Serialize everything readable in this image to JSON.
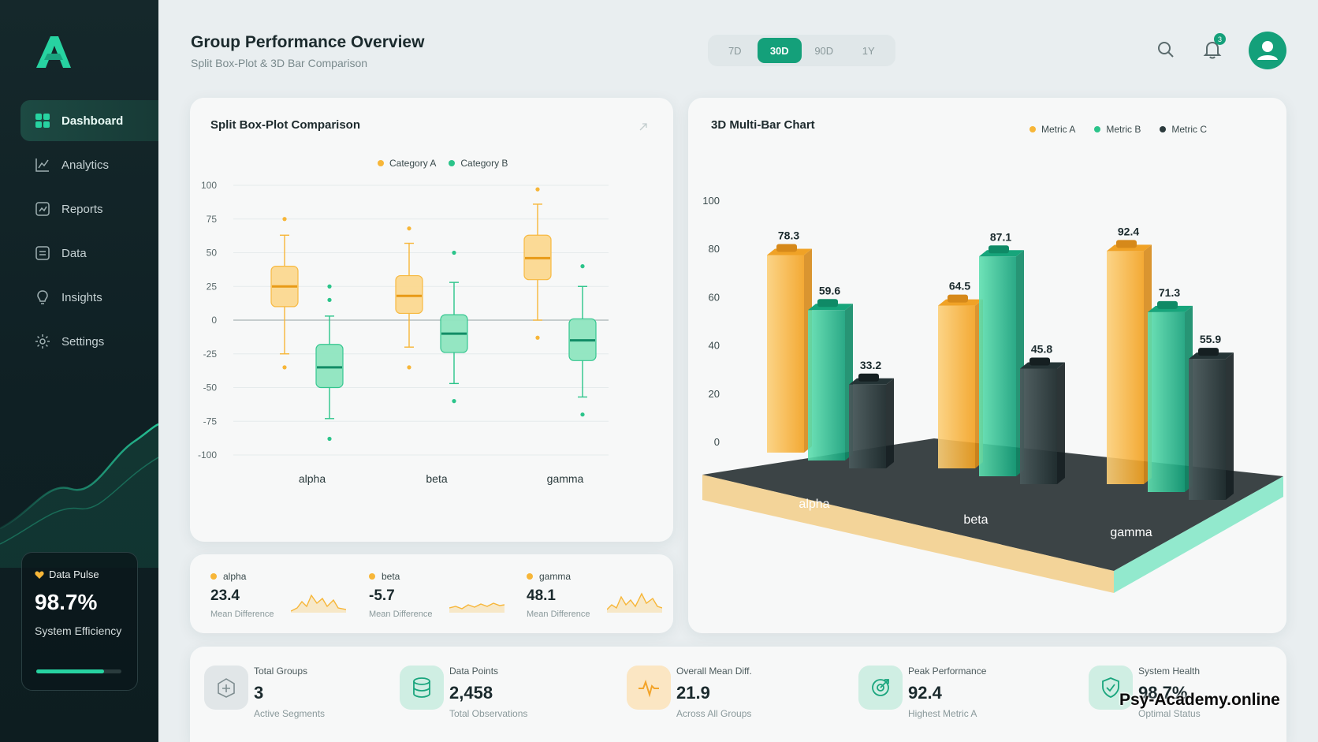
{
  "app": {
    "title": "Group Performance Overview",
    "subtitle": "Split Box-Plot & 3D Bar Comparison",
    "brand_color": "#14a07a"
  },
  "sidebar": {
    "items": [
      {
        "label": "Dashboard",
        "icon": "grid-icon",
        "active": true
      },
      {
        "label": "Analytics",
        "icon": "chart-line-icon"
      },
      {
        "label": "Reports",
        "icon": "report-icon"
      },
      {
        "label": "Data",
        "icon": "data-icon"
      },
      {
        "label": "Insights",
        "icon": "bulb-icon"
      },
      {
        "label": "Settings",
        "icon": "gear-icon"
      }
    ],
    "pulse": {
      "title": "Data Pulse",
      "value": "98.7%",
      "label": "System Efficiency",
      "progress": 0.8
    }
  },
  "header": {
    "ranges": [
      "7D",
      "30D",
      "90D",
      "1Y"
    ],
    "selected_range": "30D",
    "notification_count": "3"
  },
  "box_card": {
    "title": "Split Box-Plot Comparison",
    "legend": [
      {
        "label": "Category A",
        "color": "#f7b638"
      },
      {
        "label": "Category B",
        "color": "#2bc48a"
      }
    ]
  },
  "bar_card": {
    "title": "3D Multi-Bar Chart",
    "legend": [
      {
        "label": "Metric A",
        "color": "#f7b638"
      },
      {
        "label": "Metric B",
        "color": "#2bc48a"
      },
      {
        "label": "Metric C",
        "color": "#2c3b3d"
      }
    ]
  },
  "mini_stats": [
    {
      "name": "alpha",
      "value": "23.4",
      "label": "Mean Difference"
    },
    {
      "name": "beta",
      "value": "-5.7",
      "label": "Mean Difference"
    },
    {
      "name": "gamma",
      "value": "48.1",
      "label": "Mean Difference"
    }
  ],
  "stats": [
    {
      "name": "Total Groups",
      "value": "3",
      "label": "Active Segments",
      "icon": "groups-icon",
      "tone": "gray"
    },
    {
      "name": "Data Points",
      "value": "2,458",
      "label": "Total Observations",
      "icon": "database-icon",
      "tone": "green"
    },
    {
      "name": "Overall Mean Diff.",
      "value": "21.9",
      "label": "Across All Groups",
      "icon": "pulse-icon",
      "tone": "orange"
    },
    {
      "name": "Peak Performance",
      "value": "92.4",
      "label": "Highest Metric A",
      "icon": "target-icon",
      "tone": "green"
    },
    {
      "name": "System Health",
      "value": "98.7%",
      "label": "Optimal Status",
      "icon": "shield-check-icon",
      "tone": "green"
    }
  ],
  "watermark": "Psy-Academy.online",
  "chart_data": [
    {
      "type": "box",
      "categories": [
        "alpha",
        "beta",
        "gamma"
      ],
      "ylim": [
        -100,
        100
      ],
      "yticks": [
        100,
        75,
        50,
        25,
        0,
        -25,
        -50,
        -75,
        -100
      ],
      "series": [
        {
          "name": "Category A",
          "color": "#f7b638",
          "boxes": [
            {
              "min": -25,
              "q1": 10,
              "median": 25,
              "q3": 40,
              "max": 63,
              "outliers": [
                75,
                -35
              ]
            },
            {
              "min": -20,
              "q1": 5,
              "median": 18,
              "q3": 33,
              "max": 57,
              "outliers": [
                68,
                -35
              ]
            },
            {
              "min": 0,
              "q1": 30,
              "median": 46,
              "q3": 63,
              "max": 86,
              "outliers": [
                97,
                -13
              ]
            }
          ]
        },
        {
          "name": "Category B",
          "color": "#2bc48a",
          "boxes": [
            {
              "min": -73,
              "q1": -50,
              "median": -35,
              "q3": -18,
              "max": 3,
              "outliers": [
                15,
                25,
                -88
              ]
            },
            {
              "min": -47,
              "q1": -24,
              "median": -10,
              "q3": 4,
              "max": 28,
              "outliers": [
                50,
                -60
              ]
            },
            {
              "min": -57,
              "q1": -30,
              "median": -15,
              "q3": 1,
              "max": 25,
              "outliers": [
                40,
                -70
              ]
            }
          ]
        }
      ]
    },
    {
      "type": "bar",
      "categories": [
        "alpha",
        "beta",
        "gamma"
      ],
      "ylim": [
        0,
        100
      ],
      "yticks": [
        100,
        80,
        60,
        40,
        20,
        0
      ],
      "series": [
        {
          "name": "Metric A",
          "values": [
            78.3,
            64.5,
            92.4
          ]
        },
        {
          "name": "Metric B",
          "values": [
            59.6,
            87.1,
            71.3
          ]
        },
        {
          "name": "Metric C",
          "values": [
            33.2,
            45.8,
            55.9
          ]
        }
      ]
    }
  ]
}
